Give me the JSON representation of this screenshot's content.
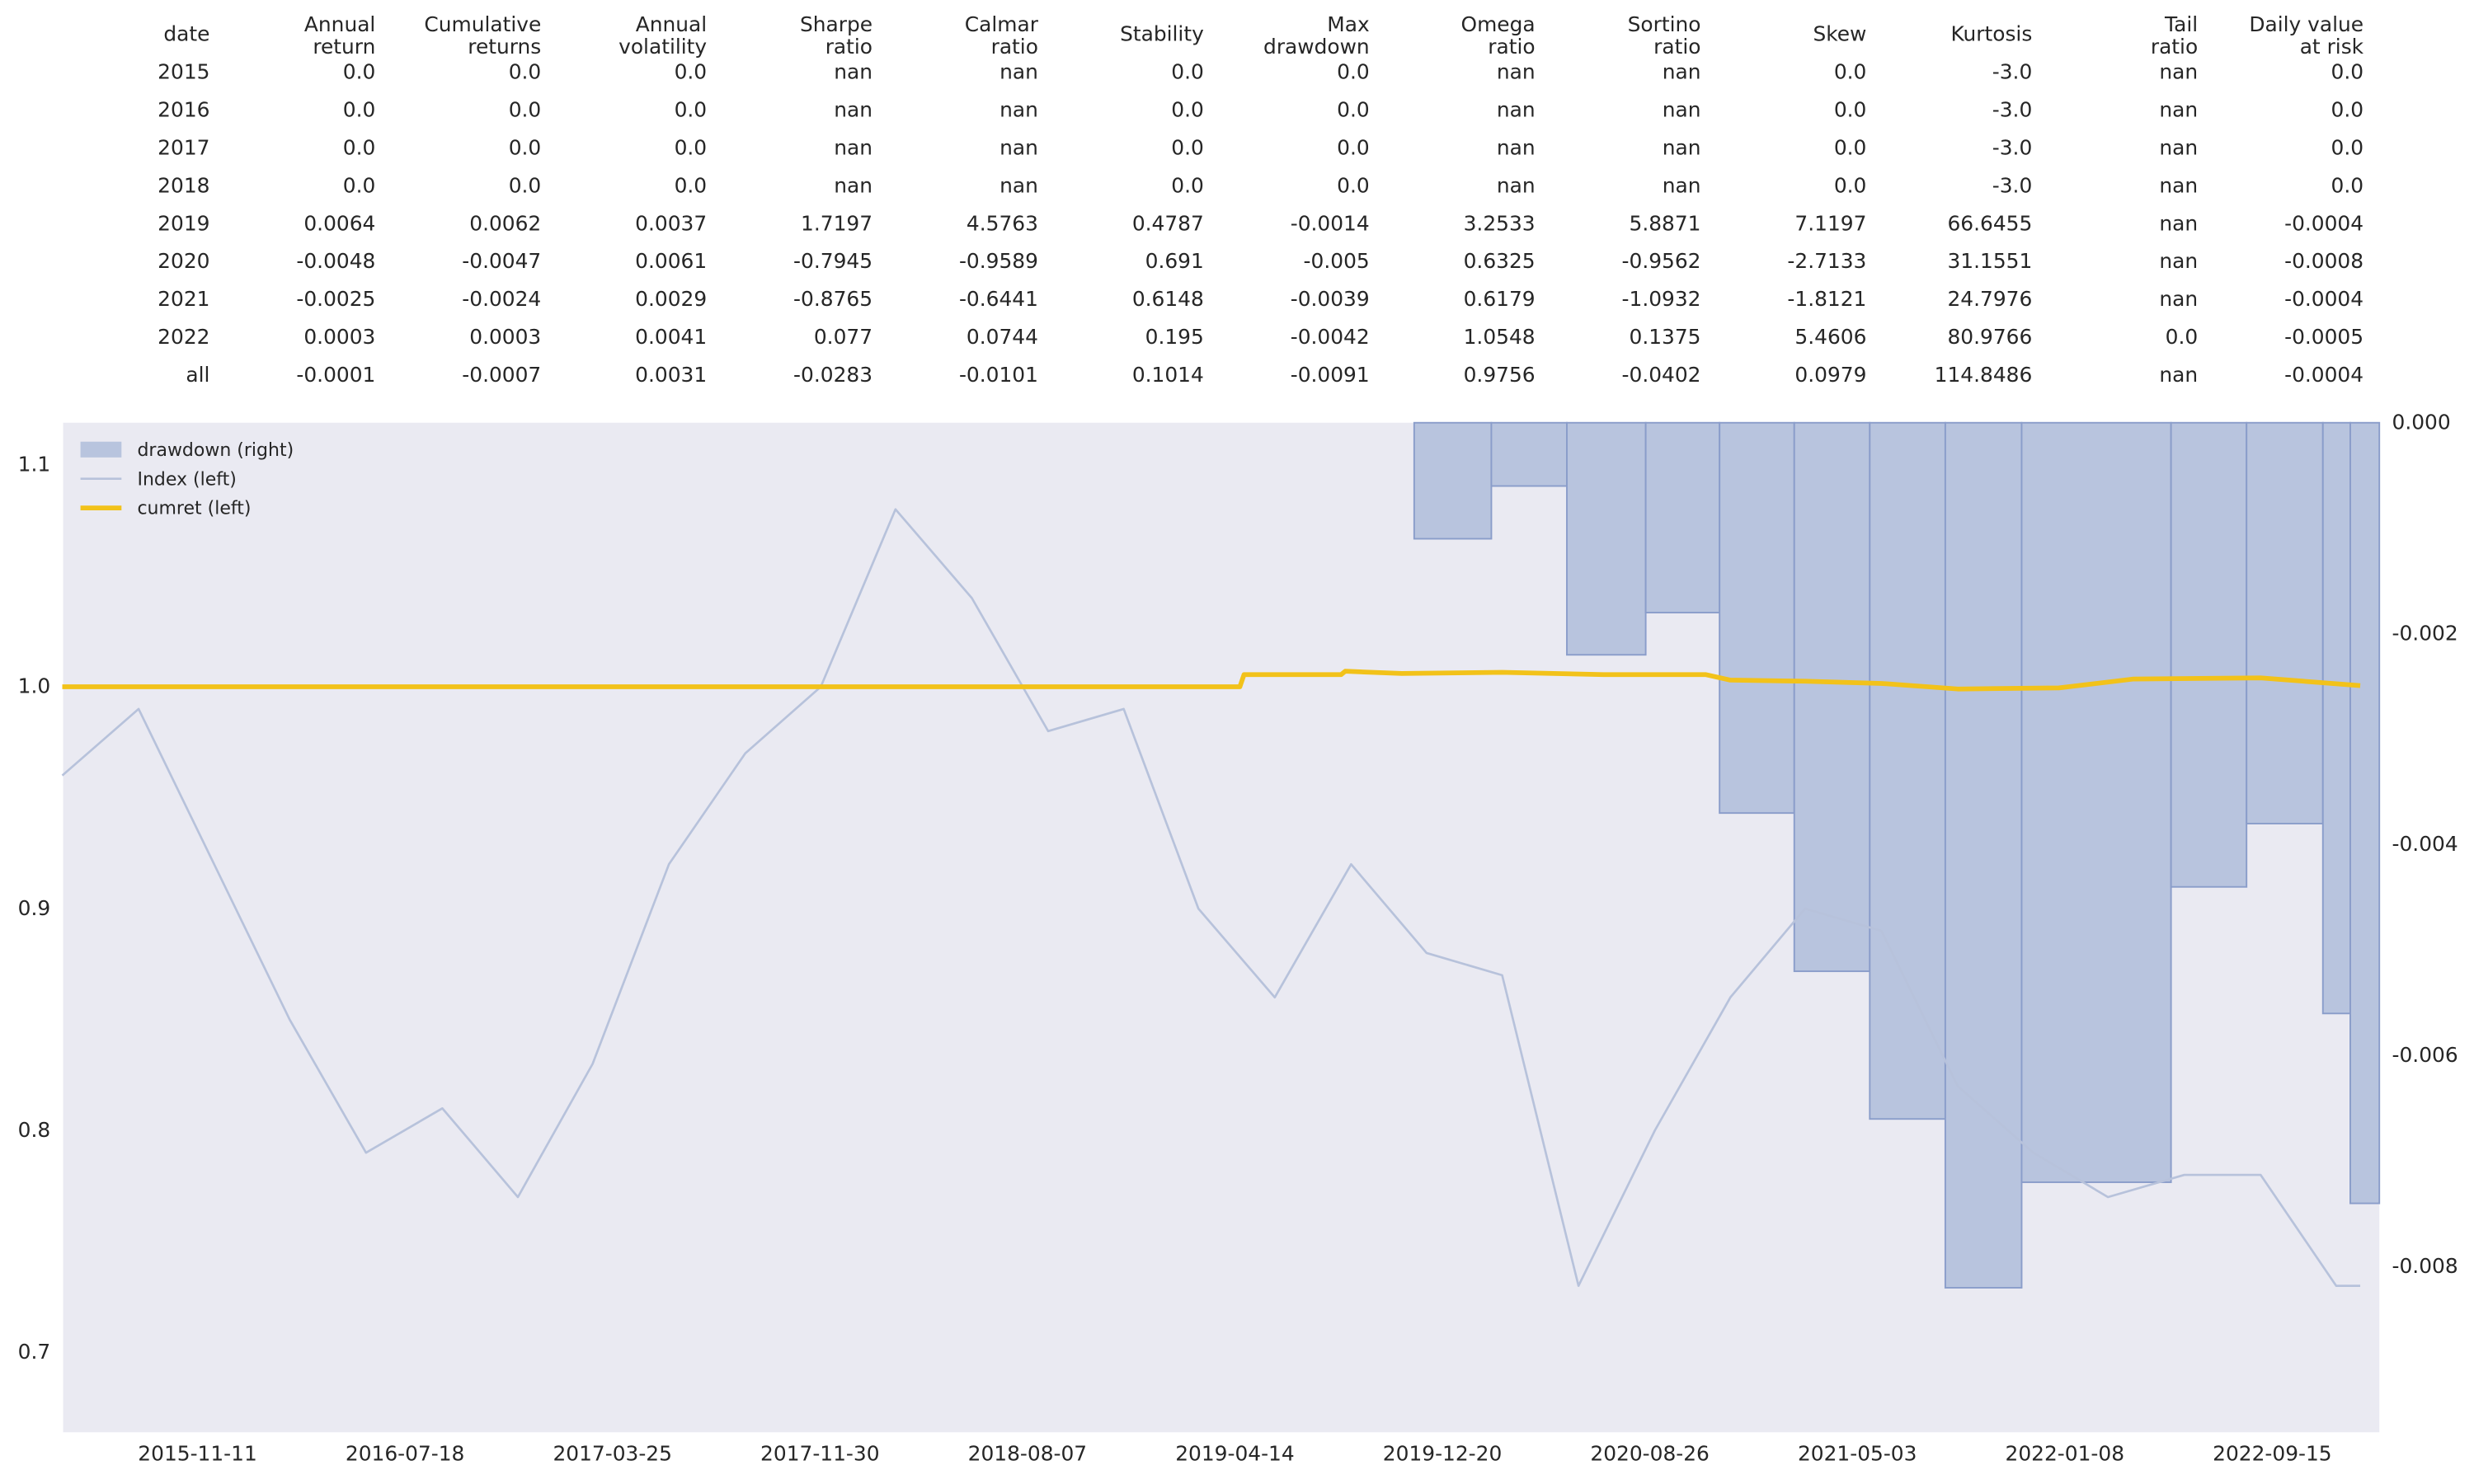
{
  "table": {
    "headers": [
      [
        "date"
      ],
      [
        "Annual",
        "return"
      ],
      [
        "Cumulative",
        "returns"
      ],
      [
        "Annual",
        "volatility"
      ],
      [
        "Sharpe",
        "ratio"
      ],
      [
        "Calmar",
        "ratio"
      ],
      [
        "Stability"
      ],
      [
        "Max",
        "drawdown"
      ],
      [
        "Omega",
        "ratio"
      ],
      [
        "Sortino",
        "ratio"
      ],
      [
        "Skew"
      ],
      [
        "Kurtosis"
      ],
      [
        "Tail",
        "ratio"
      ],
      [
        "Daily value",
        "at risk"
      ]
    ],
    "rows": [
      [
        "2015",
        "0.0",
        "0.0",
        "0.0",
        "nan",
        "nan",
        "0.0",
        "0.0",
        "nan",
        "nan",
        "0.0",
        "-3.0",
        "nan",
        "0.0"
      ],
      [
        "2016",
        "0.0",
        "0.0",
        "0.0",
        "nan",
        "nan",
        "0.0",
        "0.0",
        "nan",
        "nan",
        "0.0",
        "-3.0",
        "nan",
        "0.0"
      ],
      [
        "2017",
        "0.0",
        "0.0",
        "0.0",
        "nan",
        "nan",
        "0.0",
        "0.0",
        "nan",
        "nan",
        "0.0",
        "-3.0",
        "nan",
        "0.0"
      ],
      [
        "2018",
        "0.0",
        "0.0",
        "0.0",
        "nan",
        "nan",
        "0.0",
        "0.0",
        "nan",
        "nan",
        "0.0",
        "-3.0",
        "nan",
        "0.0"
      ],
      [
        "2019",
        "0.0064",
        "0.0062",
        "0.0037",
        "1.7197",
        "4.5763",
        "0.4787",
        "-0.0014",
        "3.2533",
        "5.8871",
        "7.1197",
        "66.6455",
        "nan",
        "-0.0004"
      ],
      [
        "2020",
        "-0.0048",
        "-0.0047",
        "0.0061",
        "-0.7945",
        "-0.9589",
        "0.691",
        "-0.005",
        "0.6325",
        "-0.9562",
        "-2.7133",
        "31.1551",
        "nan",
        "-0.0008"
      ],
      [
        "2021",
        "-0.0025",
        "-0.0024",
        "0.0029",
        "-0.8765",
        "-0.6441",
        "0.6148",
        "-0.0039",
        "0.6179",
        "-1.0932",
        "-1.8121",
        "24.7976",
        "nan",
        "-0.0004"
      ],
      [
        "2022",
        "0.0003",
        "0.0003",
        "0.0041",
        "0.077",
        "0.0744",
        "0.195",
        "-0.0042",
        "1.0548",
        "0.1375",
        "5.4606",
        "80.9766",
        "0.0",
        "-0.0005"
      ],
      [
        "all",
        "-0.0001",
        "-0.0007",
        "0.0031",
        "-0.0283",
        "-0.0101",
        "0.1014",
        "-0.0091",
        "0.9756",
        "-0.0402",
        "0.0979",
        "114.8486",
        "nan",
        "-0.0004"
      ]
    ]
  },
  "chart_data": {
    "type": "line",
    "grid": false,
    "legend": "upper left",
    "background": "#eaeaf2",
    "xlim": [
      "2015-06-02",
      "2023-01-22"
    ],
    "xticks": [
      "2015-11-11",
      "2016-07-18",
      "2017-03-25",
      "2017-11-30",
      "2018-08-07",
      "2019-04-14",
      "2019-12-20",
      "2020-08-26",
      "2021-05-03",
      "2022-01-08",
      "2022-09-15"
    ],
    "ylim": [
      0.664,
      1.119
    ],
    "yticks": [
      0.7,
      0.8,
      0.9,
      {
        "value": 1.0,
        "label": "1.0"
      },
      1.1
    ],
    "y2lim": [
      -0.00957,
      0
    ],
    "y2ticks": [
      {
        "value": 0,
        "label": "0.000"
      },
      {
        "value": -0.002,
        "label": "-0.002"
      },
      {
        "value": -0.004,
        "label": "-0.004"
      },
      {
        "value": -0.006,
        "label": "-0.006"
      },
      {
        "value": -0.008,
        "label": "-0.008"
      }
    ],
    "series": [
      {
        "name": "drawdown (right)",
        "type": "area",
        "axis": "y2",
        "color": "#b8c4de",
        "edge": "#8a9dca",
        "x": [
          "2015-06-01",
          "2019-11-16",
          "2020-02-17",
          "2020-05-18",
          "2020-08-21",
          "2020-11-18",
          "2021-02-16",
          "2021-05-18",
          "2021-08-17",
          "2021-11-17",
          "2022-05-16",
          "2022-08-15",
          "2022-11-15",
          "2022-12-18"
        ],
        "values": [
          0,
          -0.0011,
          -0.0006,
          -0.0022,
          -0.0018,
          -0.0037,
          -0.0052,
          -0.0066,
          -0.0082,
          -0.0072,
          -0.0044,
          -0.0038,
          -0.0056,
          -0.0074
        ]
      },
      {
        "name": "Index (left)",
        "type": "line",
        "color": "#b7c2db",
        "x": [
          "2015-06-01",
          "2015-09-01",
          "2015-12-01",
          "2016-03-01",
          "2016-06-01",
          "2016-09-01",
          "2016-12-01",
          "2017-03-01",
          "2017-06-01",
          "2017-09-01",
          "2017-12-01",
          "2018-03-01",
          "2018-06-01",
          "2018-09-01",
          "2018-12-01",
          "2019-03-01",
          "2019-06-01",
          "2019-09-01",
          "2019-12-01",
          "2020-03-01",
          "2020-06-01",
          "2020-09-01",
          "2020-12-01",
          "2021-03-01",
          "2021-06-01",
          "2021-09-01",
          "2021-12-01",
          "2022-03-01",
          "2022-06-01",
          "2022-09-01",
          "2022-12-01",
          "2022-12-30"
        ],
        "values": [
          0.96,
          0.99,
          0.92,
          0.85,
          0.79,
          0.81,
          0.77,
          0.83,
          0.92,
          0.97,
          1.0,
          1.08,
          1.04,
          0.98,
          0.99,
          0.9,
          0.86,
          0.92,
          0.88,
          0.87,
          0.73,
          0.8,
          0.86,
          0.9,
          0.89,
          0.82,
          0.79,
          0.77,
          0.78,
          0.78,
          0.73,
          0.73
        ]
      },
      {
        "name": "cumret (left)",
        "type": "line",
        "color": "#f2c21a",
        "width": 3,
        "x": [
          "2015-06-01",
          "2019-04-20",
          "2019-04-25",
          "2019-08-20",
          "2019-08-25",
          "2019-11-01",
          "2020-03-01",
          "2020-07-01",
          "2020-11-01",
          "2020-12-01",
          "2021-03-01",
          "2021-06-01",
          "2021-09-01",
          "2022-01-01",
          "2022-04-01",
          "2022-09-01",
          "2022-12-30"
        ],
        "values": [
          1.0,
          1.0,
          1.0055,
          1.0055,
          1.007,
          1.006,
          1.0065,
          1.0055,
          1.0055,
          1.003,
          1.0025,
          1.0015,
          0.999,
          0.9995,
          1.0035,
          1.004,
          1.0005
        ]
      }
    ]
  }
}
